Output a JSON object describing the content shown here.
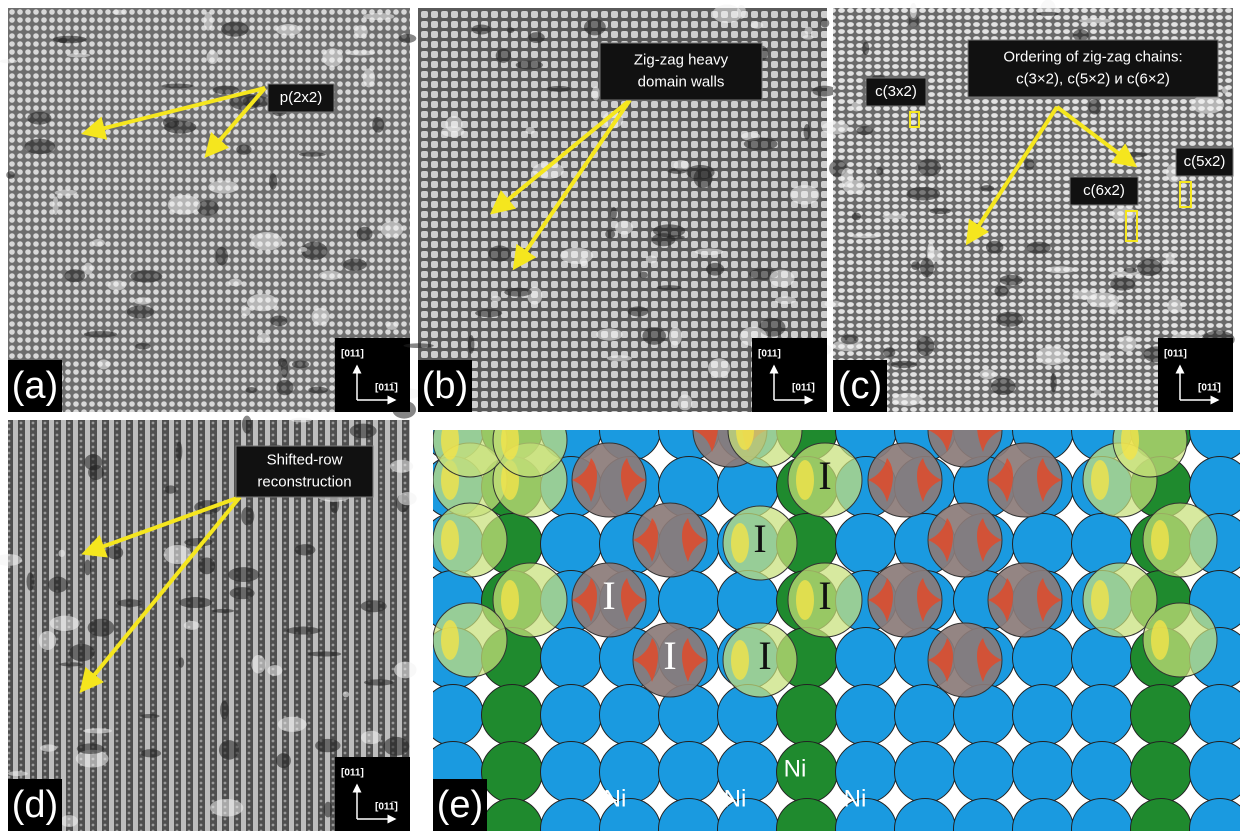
{
  "panels": [
    {
      "label": "(a)",
      "annotations": [
        {
          "lines": [
            "p(2x2)"
          ]
        }
      ],
      "axes": [
        "[011]",
        "[011̅]"
      ]
    },
    {
      "label": "(b)",
      "annotations": [
        {
          "lines": [
            "Zig-zag heavy",
            "domain walls"
          ]
        }
      ],
      "axes": [
        "[011]",
        "[011̅]"
      ]
    },
    {
      "label": "(c)",
      "annotations": [
        {
          "lines": [
            "Ordering of zig-zag chains:",
            "c(3×2), c(5×2) и c(6×2)"
          ]
        },
        {
          "lines": [
            "c(3x2)"
          ]
        },
        {
          "lines": [
            "c(6x2)"
          ]
        },
        {
          "lines": [
            "c(5x2)"
          ]
        }
      ],
      "axes": [
        "[011]",
        "[011̅]"
      ]
    },
    {
      "label": "(d)",
      "annotations": [
        {
          "lines": [
            "Shifted-row",
            "reconstruction"
          ]
        }
      ],
      "axes": [
        "[011]",
        "[011̅]"
      ]
    }
  ],
  "diagram": {
    "label": "(e)",
    "markers": [
      "I",
      "I",
      "I",
      "I",
      "I",
      "I"
    ],
    "atoms": [
      "Ni",
      "Ni",
      "Ni",
      "Ni"
    ]
  }
}
